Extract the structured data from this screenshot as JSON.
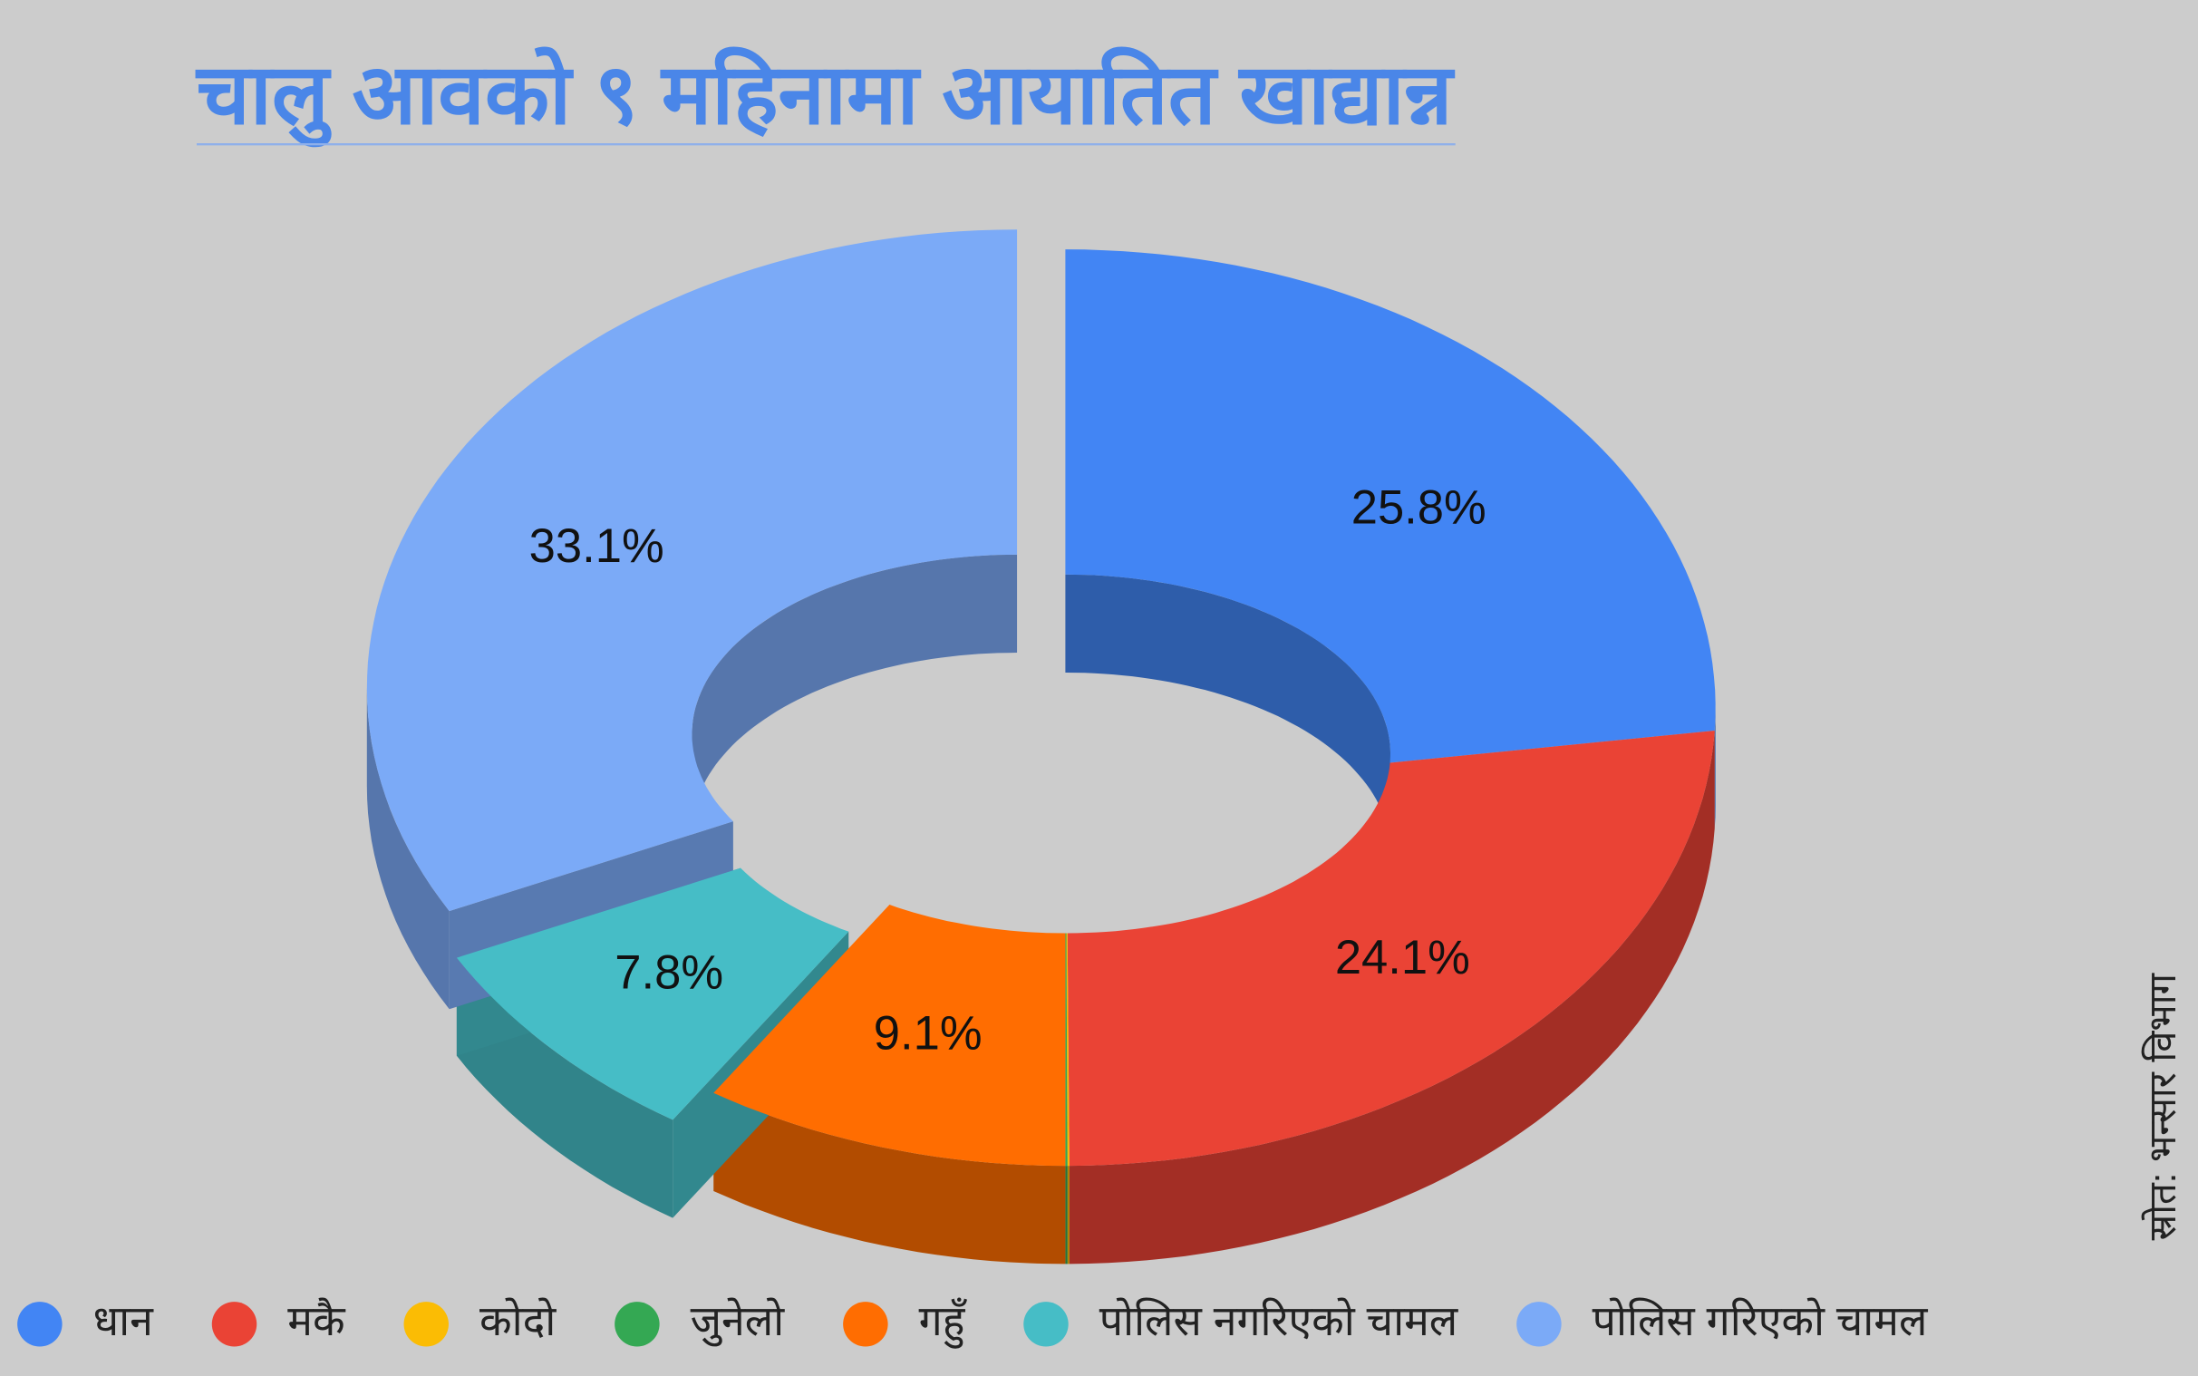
{
  "chart_data": {
    "type": "donut3d",
    "title": "चालु आवको ९ महिनामा आयातित खाद्यान्न",
    "source": "स्रोत: भन्सार विभाग",
    "categories": [
      "धान",
      "मकै",
      "कोदो",
      "जुनेलो",
      "गहुँ",
      "पोलिस नगरिएको चामल",
      "पोलिस गरिएको चामल"
    ],
    "values": [
      25.8,
      24.1,
      0.05,
      0.05,
      9.1,
      7.8,
      33.1
    ],
    "value_labels": [
      "25.8%",
      "24.1%",
      null,
      null,
      "9.1%",
      "7.8%",
      "33.1%"
    ],
    "colors": [
      "#4285f4",
      "#ea4335",
      "#fbbc04",
      "#34a853",
      "#ff6d01",
      "#46bdc6",
      "#7baaf7"
    ],
    "exploded_slices": [
      5,
      6
    ],
    "legend": "bottom"
  }
}
